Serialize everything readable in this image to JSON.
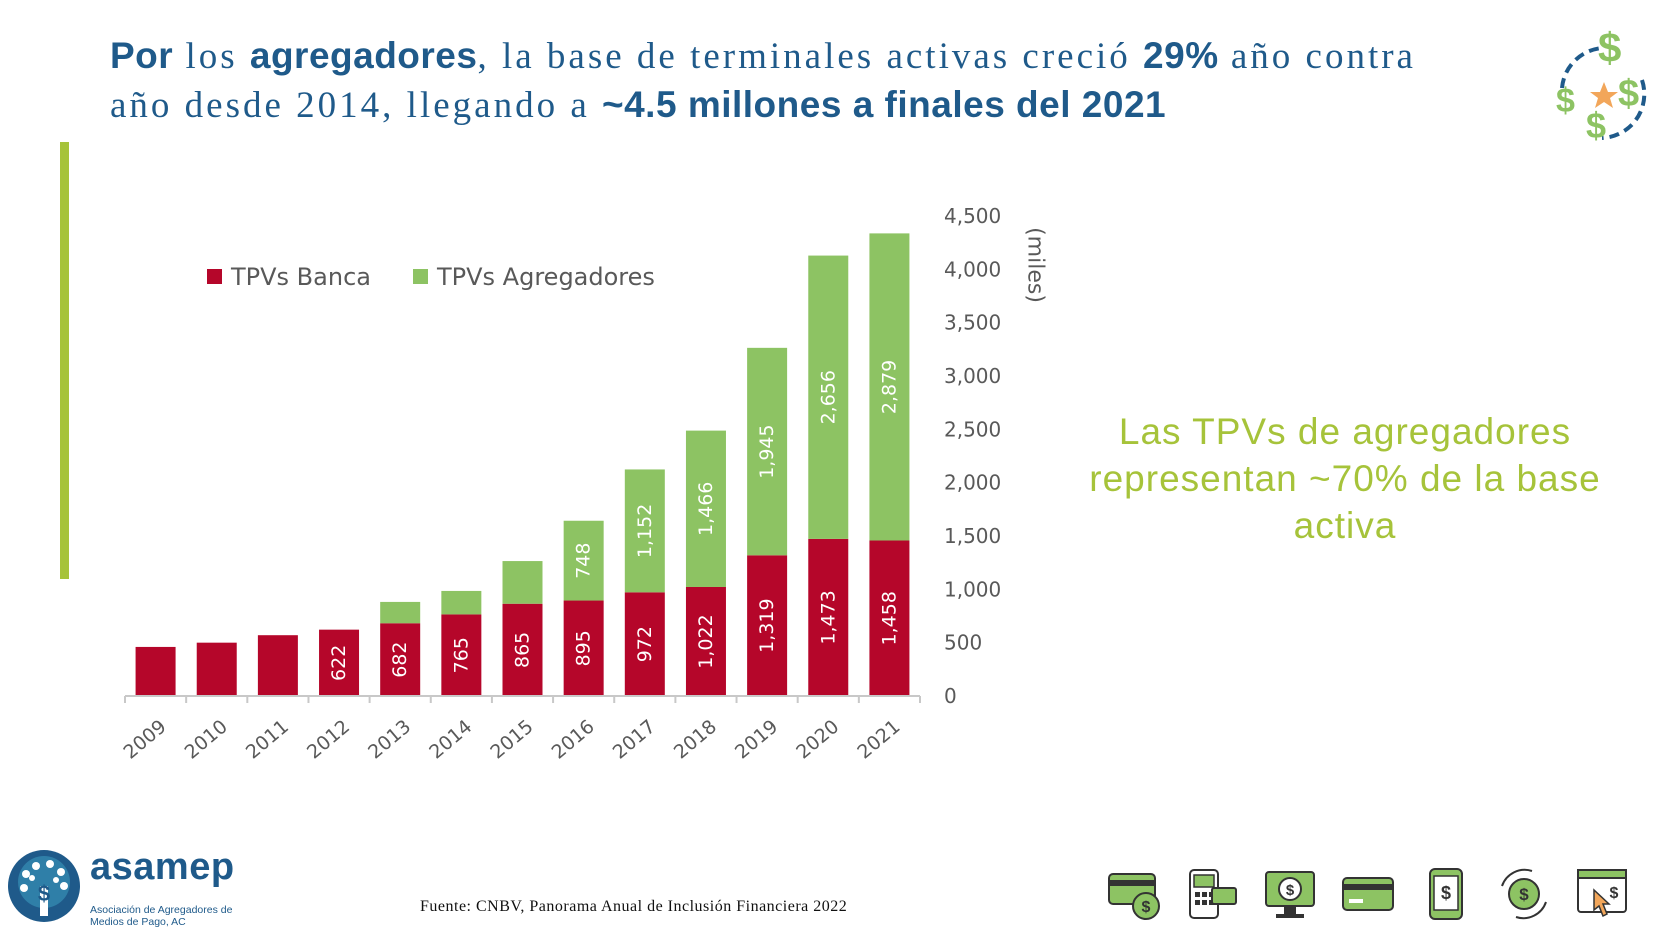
{
  "headline": {
    "p1": "Por",
    "p2": " los ",
    "p3": "agregadores",
    "p4": ", la base de terminales activas creció ",
    "p5": "29%",
    "p6": " año contra año desde 2014, llegando a ",
    "p7": "~4.5 millones a finales del 2021"
  },
  "callout": "Las TPVs de agregadores representan ~70% de la base activa",
  "source": "Fuente: CNBV, Panorama Anual de Inclusión Financiera 2022",
  "brand": {
    "name": "asamep",
    "subtitle": "Asociación de Agregadores de Medios de Pago, AC"
  },
  "colors": {
    "headline": "#1f5a8a",
    "banca": "#b5062a",
    "agregadores": "#8dc363",
    "accent": "#a6c33a"
  },
  "icons": [
    "card-reader-coin-icon",
    "pos-terminal-icon",
    "monitor-payment-icon",
    "credit-card-icon",
    "mobile-payment-icon",
    "money-exchange-icon",
    "web-click-payment-icon"
  ],
  "chart_data": {
    "type": "bar",
    "stacked": true,
    "categories": [
      "2009",
      "2010",
      "2011",
      "2012",
      "2013",
      "2014",
      "2015",
      "2016",
      "2017",
      "2018",
      "2019",
      "2020",
      "2021"
    ],
    "series": [
      {
        "name": "TPVs Banca",
        "values": [
          460,
          500,
          570,
          622,
          682,
          765,
          865,
          895,
          972,
          1022,
          1319,
          1473,
          1458
        ],
        "labels": [
          "",
          "",
          "",
          "622",
          "682",
          "765",
          "865",
          "895",
          "972",
          "1,022",
          "1,319",
          "1,473",
          "1,458"
        ]
      },
      {
        "name": "TPVs Agregadores",
        "values": [
          0,
          0,
          0,
          0,
          200,
          220,
          400,
          748,
          1152,
          1466,
          1945,
          2656,
          2879
        ],
        "labels": [
          "",
          "",
          "",
          "",
          "",
          "",
          "",
          "748",
          "1,152",
          "1,466",
          "1,945",
          "2,656",
          "2,879"
        ]
      }
    ],
    "yaxis": {
      "ticks": [
        0,
        500,
        1000,
        1500,
        2000,
        2500,
        3000,
        3500,
        4000,
        4500
      ],
      "tick_labels": [
        "0",
        "500",
        "1,000",
        "1,500",
        "2,000",
        "2,500",
        "3,000",
        "3,500",
        "4,000",
        "4,500"
      ],
      "position": "right",
      "label": "(miles)"
    },
    "ylim": [
      0,
      4500
    ],
    "grid": false,
    "legend": "top-left"
  }
}
